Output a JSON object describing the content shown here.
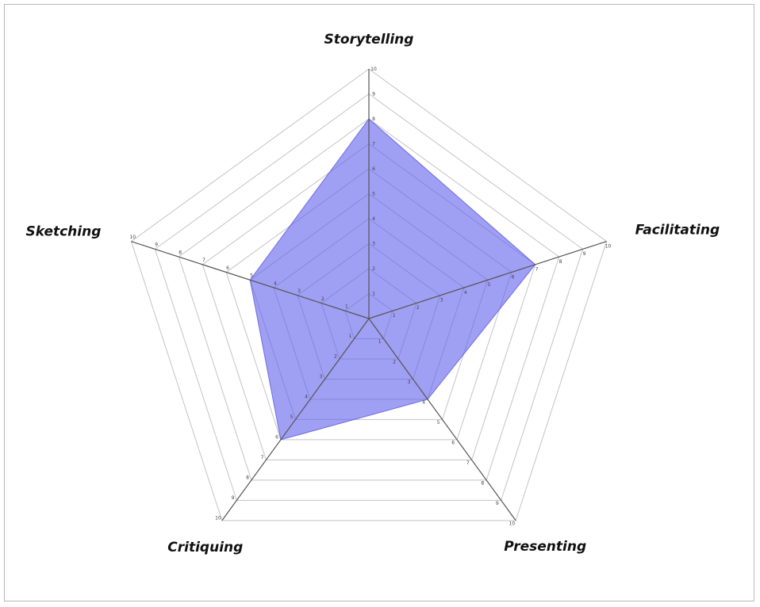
{
  "chart_data": {
    "type": "radar",
    "axes": [
      "Storytelling",
      "Facilitating",
      "Presenting",
      "Critiquing",
      "Sketching"
    ],
    "values": [
      8,
      7,
      4,
      6,
      5
    ],
    "range": [
      0,
      10
    ],
    "tick_values": [
      1,
      2,
      3,
      4,
      5,
      6,
      7,
      8,
      9,
      10
    ],
    "fill_color": "#5f5feb"
  }
}
